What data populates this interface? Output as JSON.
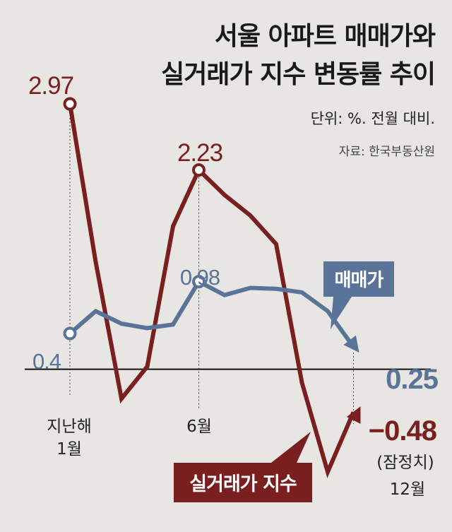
{
  "chart_data": {
    "type": "line",
    "title_lines": [
      "서울 아파트 매매가와",
      "실거래가 지수 변동률 추이"
    ],
    "unit": "단위: %. 전월 대비.",
    "source": "자료: 한국부동산원",
    "x": [
      1,
      2,
      3,
      4,
      5,
      6,
      7,
      8,
      9,
      10,
      11,
      12
    ],
    "x_tick_labels": [
      {
        "index": 0,
        "lines": [
          "지난해",
          "1월"
        ]
      },
      {
        "index": 5,
        "lines": [
          "6월"
        ]
      },
      {
        "index": 11,
        "lines": [
          "12월"
        ]
      }
    ],
    "series": [
      {
        "name": "실거래가 지수",
        "color": "#7a1f1f",
        "values": [
          2.97,
          1.2,
          -0.33,
          0.03,
          1.6,
          2.23,
          1.95,
          1.72,
          1.4,
          -0.15,
          -1.15,
          -0.48
        ]
      },
      {
        "name": "매매가",
        "color": "#5a7399",
        "values": [
          0.4,
          0.65,
          0.51,
          0.46,
          0.5,
          0.98,
          0.83,
          0.91,
          0.9,
          0.86,
          0.65,
          0.25
        ]
      }
    ],
    "annotations": [
      {
        "series": 0,
        "index": 0,
        "label": "2.97"
      },
      {
        "series": 0,
        "index": 5,
        "label": "2.23"
      },
      {
        "series": 1,
        "index": 0,
        "label": "0.4"
      },
      {
        "series": 1,
        "index": 5,
        "label": "0.98"
      },
      {
        "series": 1,
        "index": 11,
        "label": "0.25"
      },
      {
        "series": 0,
        "index": 11,
        "label": "−0.48",
        "note": "(잠정치)"
      }
    ],
    "ylim": [
      -1.4,
      3.3
    ],
    "grid": false
  }
}
